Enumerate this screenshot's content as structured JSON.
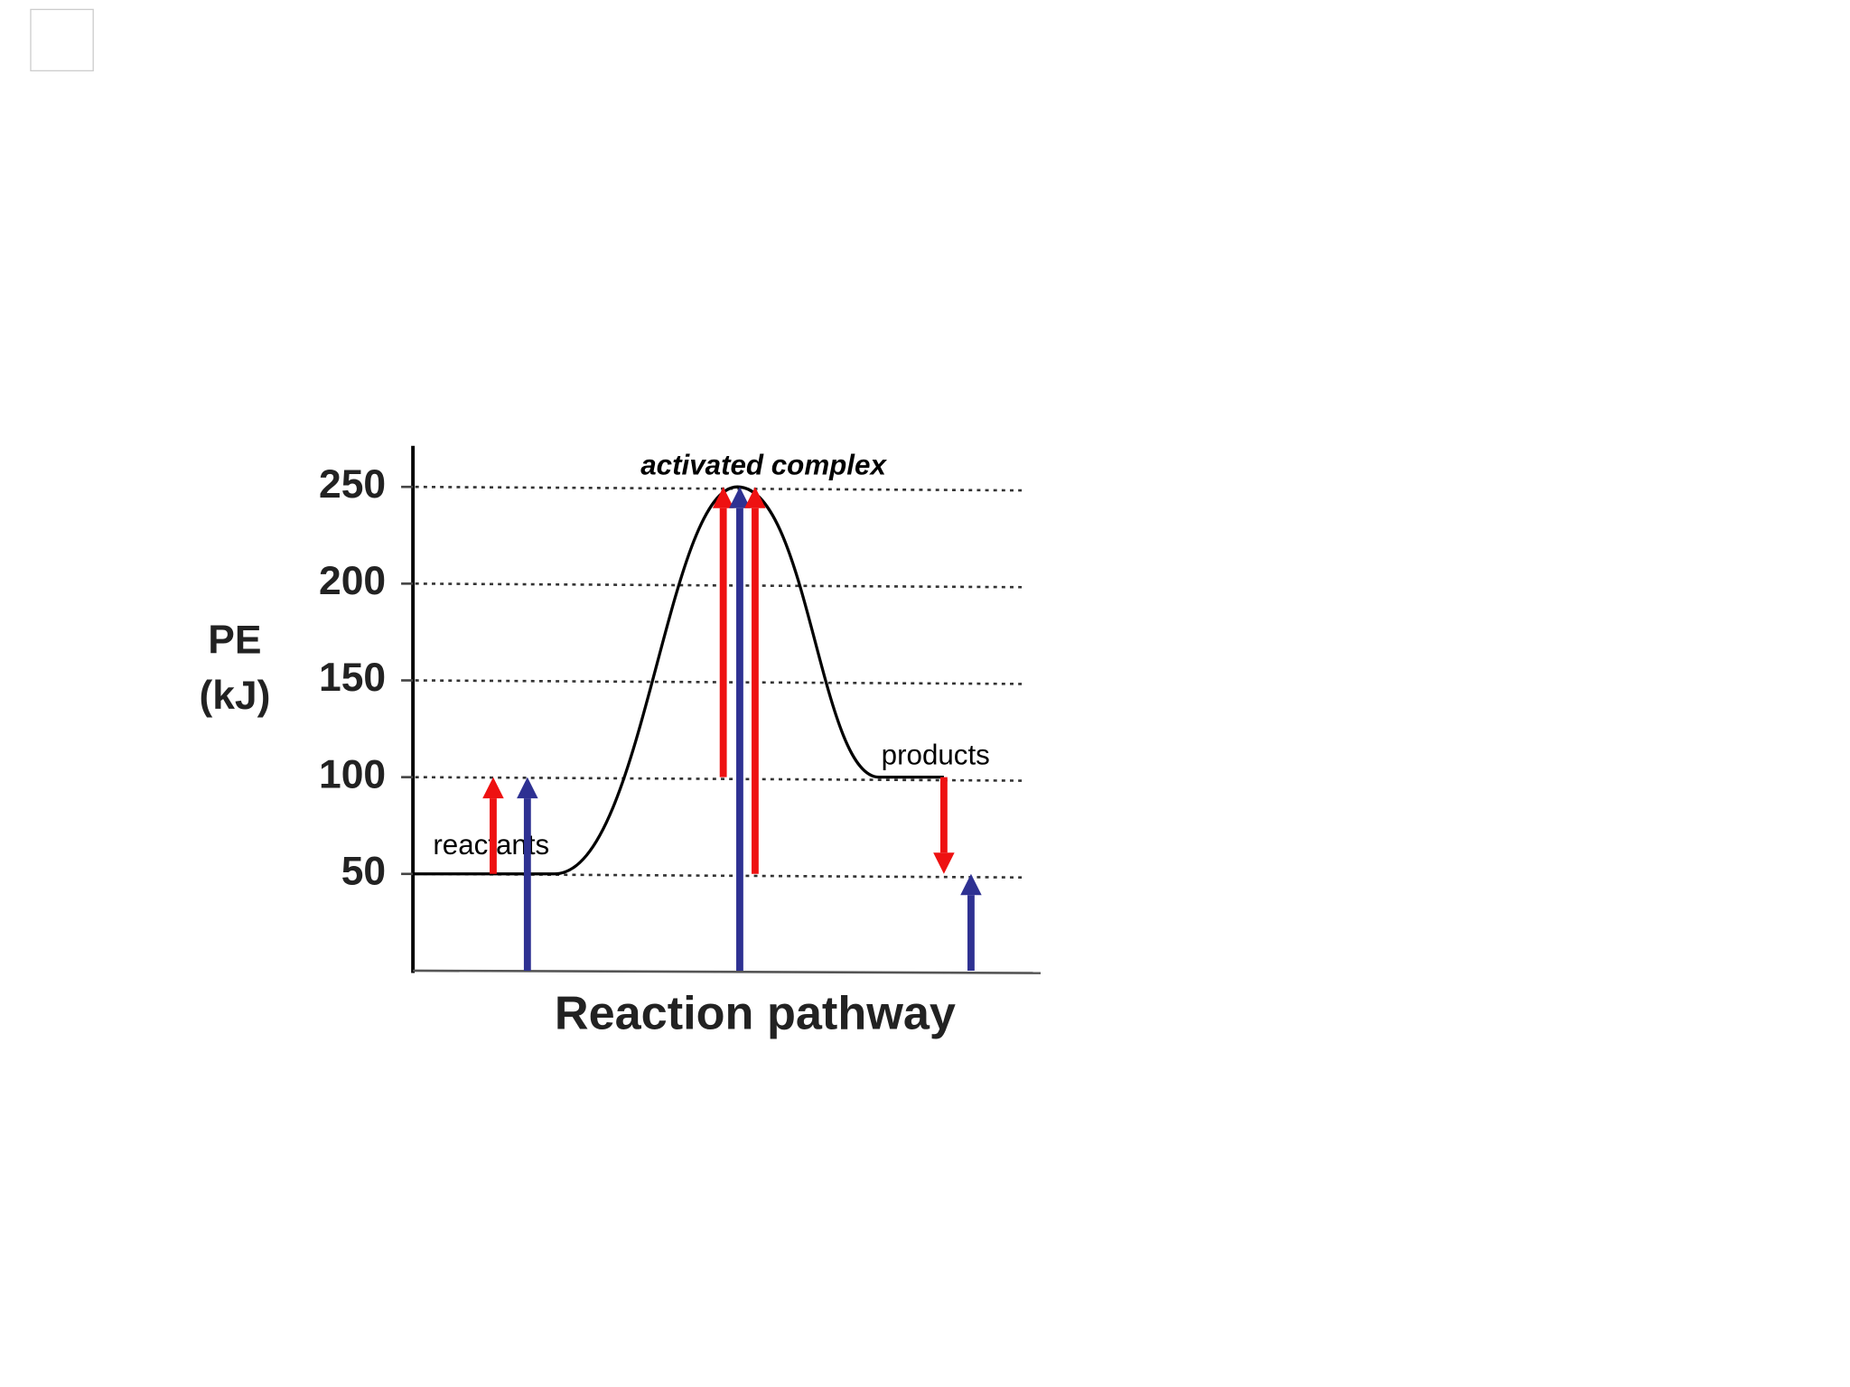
{
  "chart_data": {
    "type": "energy",
    "y_label_lines": [
      "PE",
      "(kJ)"
    ],
    "x_label": "Reaction pathway",
    "ylim": [
      0,
      270
    ],
    "yticks": [
      50,
      100,
      150,
      200,
      250
    ],
    "grid": true,
    "curve_color": "#000000",
    "levels": [
      {
        "text": "reactants",
        "value": 50
      },
      {
        "text": "activated complex",
        "value": 250
      },
      {
        "text": "products",
        "value": 100
      }
    ],
    "arrows": [
      {
        "from": 50,
        "to": 100,
        "color": "#ee1111"
      },
      {
        "from": 0,
        "to": 100,
        "color": "#2e3192"
      },
      {
        "from": 100,
        "to": 250,
        "color": "#ee1111"
      },
      {
        "from": 0,
        "to": 250,
        "color": "#2e3192"
      },
      {
        "from": 50,
        "to": 250,
        "color": "#ee1111"
      },
      {
        "from": 100,
        "to": 50,
        "color": "#ee1111"
      },
      {
        "from": 0,
        "to": 50,
        "color": "#2e3192"
      }
    ]
  }
}
